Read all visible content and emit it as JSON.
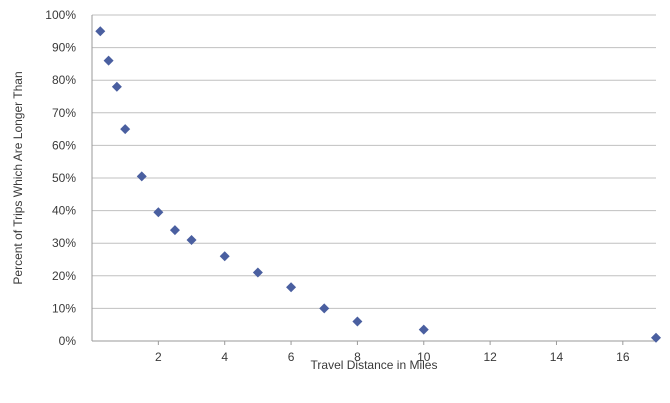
{
  "chart_data": {
    "type": "scatter",
    "title": "",
    "xlabel": "Travel Distance in Miles",
    "ylabel": "Percent of Trips Which Are Longer Than",
    "xlim": [
      0,
      17
    ],
    "ylim": [
      0,
      100
    ],
    "xticks": [
      2,
      4,
      6,
      8,
      10,
      12,
      14,
      16
    ],
    "yticks": [
      0,
      10,
      20,
      30,
      40,
      50,
      60,
      70,
      80,
      90,
      100
    ],
    "ytick_suffix": "%",
    "grid": "horizontal",
    "legend": "none",
    "marker_color": "#4a5fa0",
    "gridline_color": "#c0c0c0",
    "points": [
      {
        "x": 0.25,
        "y": 95
      },
      {
        "x": 0.5,
        "y": 86
      },
      {
        "x": 0.75,
        "y": 78
      },
      {
        "x": 1,
        "y": 65
      },
      {
        "x": 1.5,
        "y": 50.5
      },
      {
        "x": 2,
        "y": 39.5
      },
      {
        "x": 2.5,
        "y": 34
      },
      {
        "x": 3,
        "y": 31
      },
      {
        "x": 4,
        "y": 26
      },
      {
        "x": 5,
        "y": 21
      },
      {
        "x": 6,
        "y": 16.5
      },
      {
        "x": 7,
        "y": 10
      },
      {
        "x": 8,
        "y": 6
      },
      {
        "x": 10,
        "y": 3.5
      },
      {
        "x": 17,
        "y": 1
      }
    ]
  }
}
